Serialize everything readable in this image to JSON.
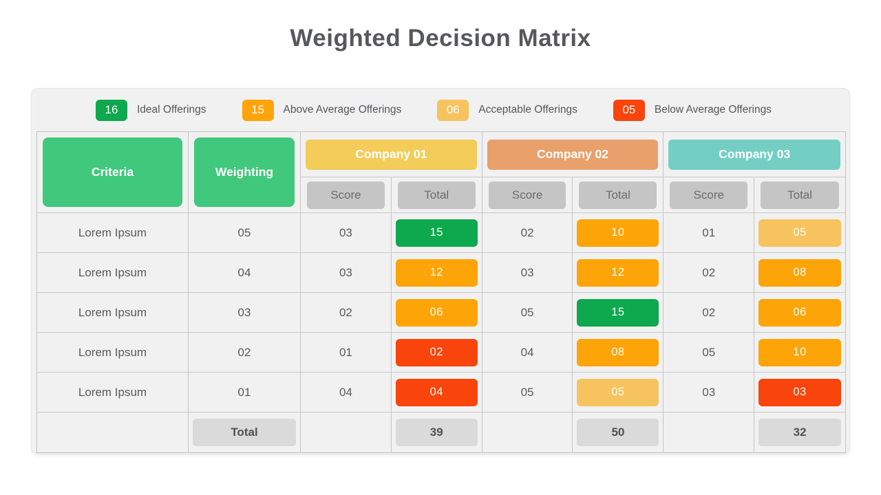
{
  "title": "Weighted Decision Matrix",
  "colors": {
    "green": "#0ea84f",
    "orange": "#fda408",
    "amber": "#f6c35e",
    "red": "#f9440b",
    "soft_green": "#40c87c",
    "company1": "#f4cc5a",
    "company2": "#e9a06b",
    "company3": "#73cfc3",
    "subheader_gray": "#c5c5c5",
    "total_gray": "#dadada"
  },
  "legend": {
    "items": [
      {
        "value": "16",
        "color": "green",
        "label": "Ideal Offerings"
      },
      {
        "value": "15",
        "color": "orange",
        "label": "Above Average Offerings"
      },
      {
        "value": "06",
        "color": "amber",
        "label": "Acceptable Offerings"
      },
      {
        "value": "05",
        "color": "red",
        "label": "Below Average Offerings"
      }
    ]
  },
  "table": {
    "criteria_header": "Criteria",
    "weighting_header": "Weighting",
    "score_label": "Score",
    "total_label": "Total",
    "companies": [
      {
        "name": "Company 01",
        "color_key": "company1"
      },
      {
        "name": "Company 02",
        "color_key": "company2"
      },
      {
        "name": "Company 03",
        "color_key": "company3"
      }
    ],
    "rows": [
      {
        "criteria": "Lorem Ipsum",
        "weighting": "05",
        "companies": [
          {
            "score": "03",
            "total": "15",
            "level": "green"
          },
          {
            "score": "02",
            "total": "10",
            "level": "orange"
          },
          {
            "score": "01",
            "total": "05",
            "level": "amber"
          }
        ]
      },
      {
        "criteria": "Lorem Ipsum",
        "weighting": "04",
        "companies": [
          {
            "score": "03",
            "total": "12",
            "level": "orange"
          },
          {
            "score": "03",
            "total": "12",
            "level": "orange"
          },
          {
            "score": "02",
            "total": "08",
            "level": "orange"
          }
        ]
      },
      {
        "criteria": "Lorem Ipsum",
        "weighting": "03",
        "companies": [
          {
            "score": "02",
            "total": "06",
            "level": "orange"
          },
          {
            "score": "05",
            "total": "15",
            "level": "green"
          },
          {
            "score": "02",
            "total": "06",
            "level": "orange"
          }
        ]
      },
      {
        "criteria": "Lorem Ipsum",
        "weighting": "02",
        "companies": [
          {
            "score": "01",
            "total": "02",
            "level": "red"
          },
          {
            "score": "04",
            "total": "08",
            "level": "orange"
          },
          {
            "score": "05",
            "total": "10",
            "level": "orange"
          }
        ]
      },
      {
        "criteria": "Lorem Ipsum",
        "weighting": "01",
        "companies": [
          {
            "score": "04",
            "total": "04",
            "level": "red"
          },
          {
            "score": "05",
            "total": "05",
            "level": "amber"
          },
          {
            "score": "03",
            "total": "03",
            "level": "red"
          }
        ]
      }
    ],
    "totals": {
      "label": "Total",
      "values": [
        "39",
        "50",
        "32"
      ]
    }
  }
}
